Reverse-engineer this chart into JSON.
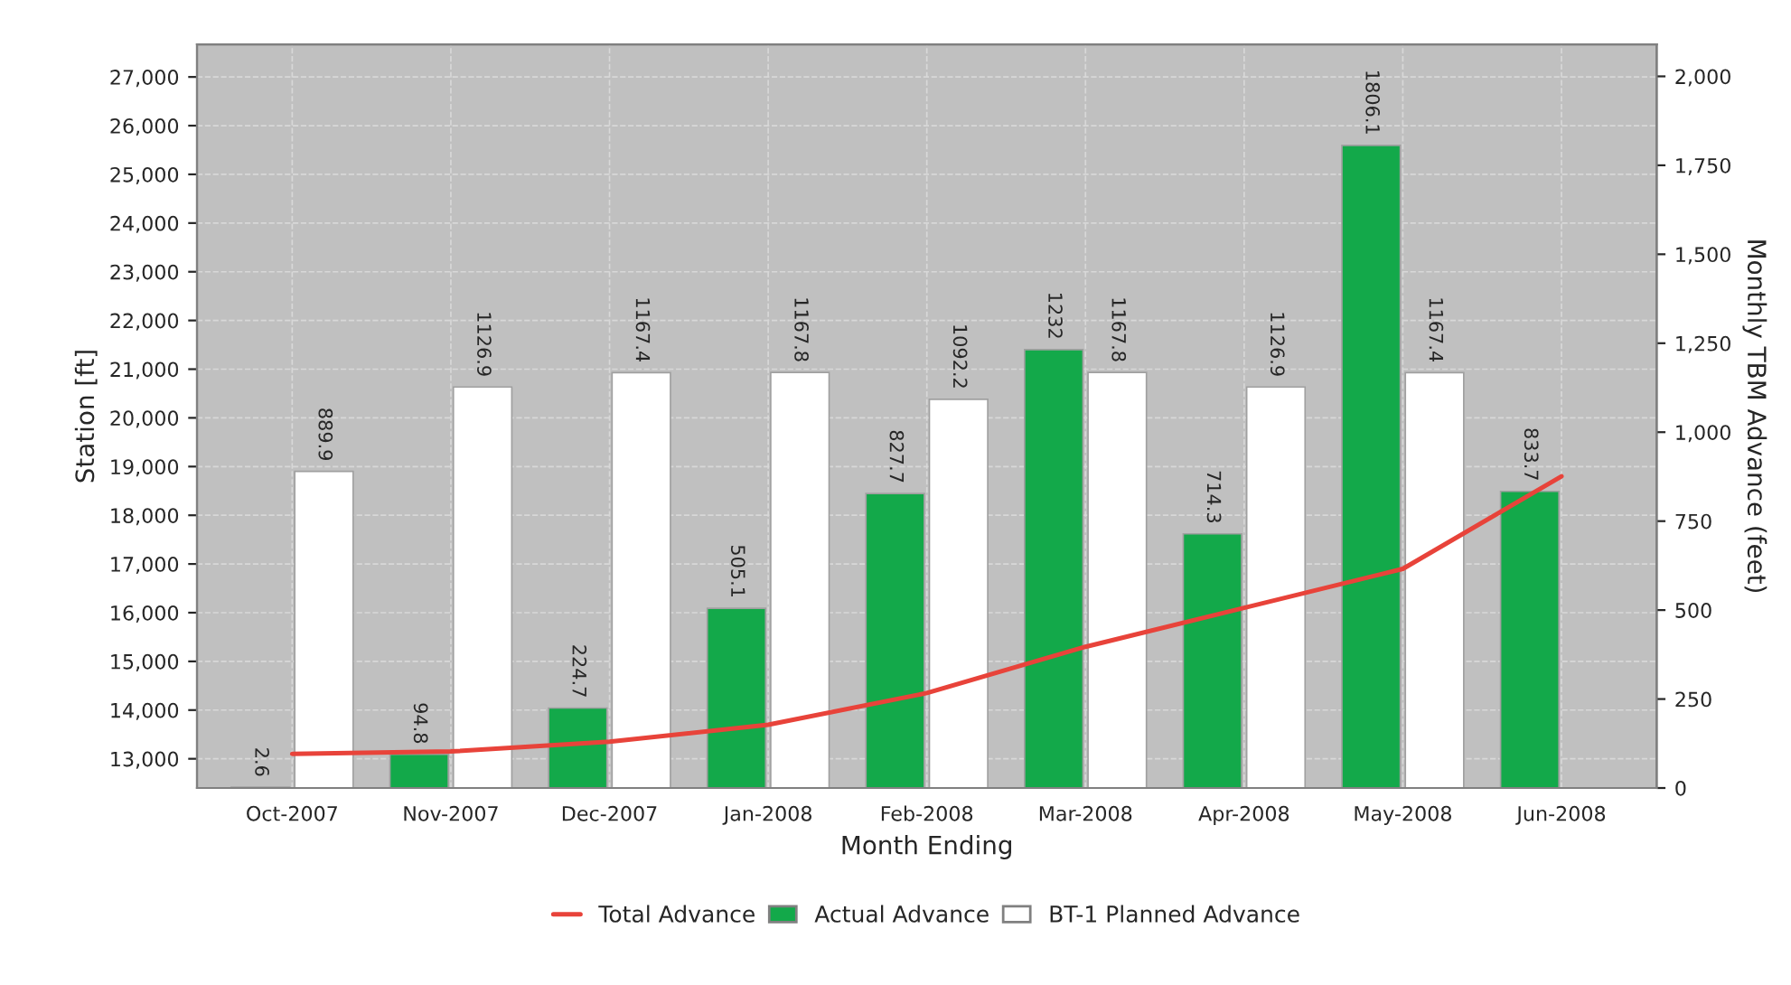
{
  "chart_data": {
    "type": "bar",
    "xlabel": "Month Ending",
    "ylabel": "Station [ft]",
    "y2label": "Monthly TBM Advance (feet)",
    "categories": [
      "Oct-2007",
      "Nov-2007",
      "Dec-2007",
      "Jan-2008",
      "Feb-2008",
      "Mar-2008",
      "Apr-2008",
      "May-2008",
      "Jun-2008"
    ],
    "series": [
      {
        "name": "Total Advance",
        "type": "line",
        "axis": "y",
        "color": "#e8433a",
        "values": [
          13100,
          13150,
          13350,
          13700,
          14350,
          15300,
          16100,
          16900,
          18800
        ]
      },
      {
        "name": "Actual Advance",
        "axis": "y2",
        "color": "#13a94a",
        "values": [
          2.6,
          94.8,
          224.7,
          505.1,
          827.7,
          1232,
          714.3,
          1806.1,
          833.7
        ],
        "value_labels": [
          "2.6",
          "94.8",
          "224.7",
          "505.1",
          "827.7",
          "1232",
          "714.3",
          "1806.1",
          "833.7"
        ]
      },
      {
        "name": "BT-1 Planned Advance",
        "axis": "y2",
        "color": "#ffffff",
        "values": [
          889.9,
          1126.9,
          1167.4,
          1167.8,
          1092.2,
          1167.8,
          1126.9,
          1167.4,
          null
        ],
        "value_labels": [
          "889.9",
          "1126.9",
          "1167.4",
          "1167.8",
          "1092.2",
          "1167.8",
          "1126.9",
          "1167.4",
          null
        ]
      }
    ],
    "ylim": [
      12400,
      27670
    ],
    "yticks": [
      {
        "value": 13000,
        "label": "13,000"
      },
      {
        "value": 14000,
        "label": "14,000"
      },
      {
        "value": 15000,
        "label": "15,000"
      },
      {
        "value": 16000,
        "label": "16,000"
      },
      {
        "value": 17000,
        "label": "17,000"
      },
      {
        "value": 18000,
        "label": "18,000"
      },
      {
        "value": 19000,
        "label": "19,000"
      },
      {
        "value": 20000,
        "label": "20,000"
      },
      {
        "value": 21000,
        "label": "21,000"
      },
      {
        "value": 22000,
        "label": "22,000"
      },
      {
        "value": 23000,
        "label": "23,000"
      },
      {
        "value": 24000,
        "label": "24,000"
      },
      {
        "value": 25000,
        "label": "25,000"
      },
      {
        "value": 26000,
        "label": "26,000"
      },
      {
        "value": 27000,
        "label": "27,000"
      }
    ],
    "y2lim": [
      0,
      2090
    ],
    "y2ticks": [
      0,
      250,
      500,
      750,
      {
        "value": 1000,
        "label": "1,000"
      },
      {
        "value": 1250,
        "label": "1,250"
      },
      {
        "value": 1500,
        "label": "1,500"
      },
      {
        "value": 1750,
        "label": "1,750"
      },
      {
        "value": 2000,
        "label": "2,000"
      }
    ],
    "grid": true,
    "legend": "bottom"
  }
}
